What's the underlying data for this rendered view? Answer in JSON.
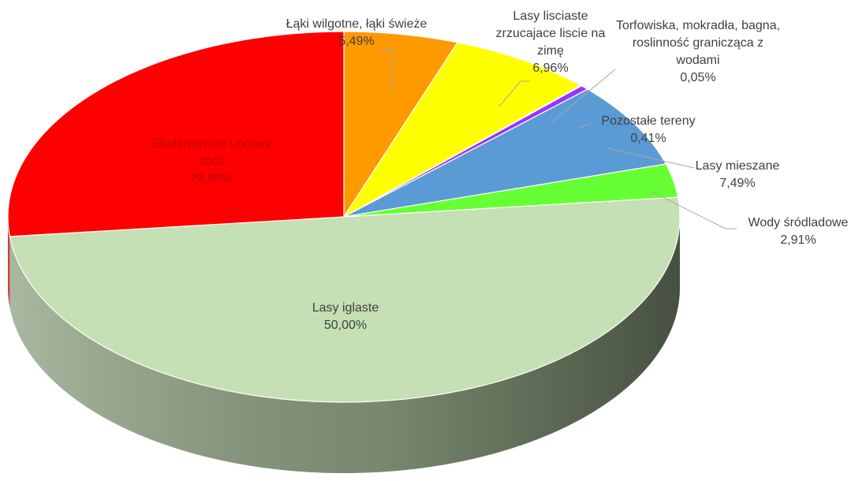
{
  "chart_data": {
    "type": "pie",
    "pie_3d": true,
    "categories": [
      "Łąki wilgotne, łąki świeże",
      "Lasy lisciaste zrzucajace liscie na zimę",
      "Torfowiska, mokradła, bagna, roslinność granicząca z wodami",
      "Pozostałe tereny",
      "Lasy mieszane",
      "Wody śródladowe",
      "Lasy iglaste",
      "Ekstensywne uprawy zbóż"
    ],
    "values": [
      5.49,
      6.96,
      0.05,
      0.41,
      7.49,
      2.91,
      50.0,
      26.69
    ],
    "value_labels": [
      "5,49%",
      "6,96%",
      "0,05%",
      "0,41%",
      "7,49%",
      "2,91%",
      "50,00%",
      "26,69%"
    ],
    "colors": [
      "#ff9900",
      "#ffff00",
      "#7fbf7f",
      "#9933ff",
      "#5b9bd5",
      "#66ff33",
      "#c5e0b4",
      "#ff0000"
    ]
  }
}
